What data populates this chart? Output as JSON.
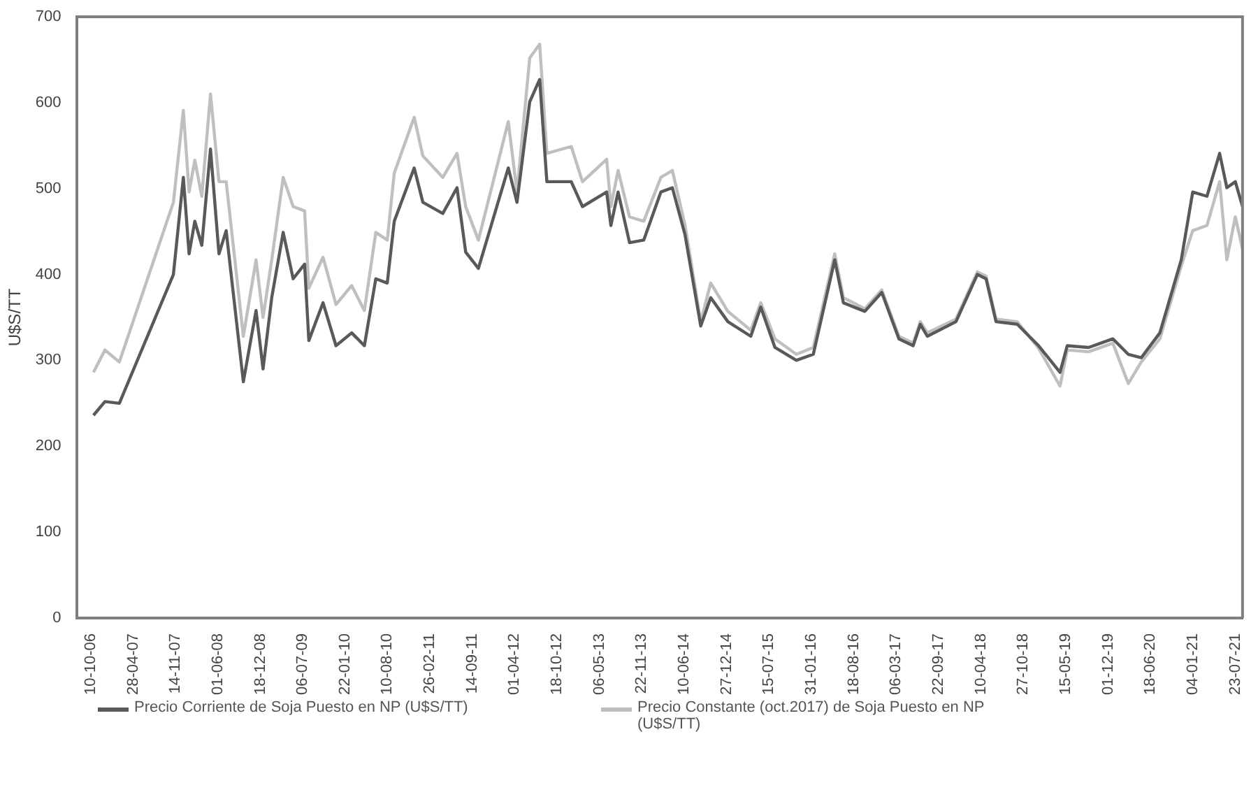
{
  "chart_data": {
    "type": "line",
    "ylabel": "U$S/TT",
    "x": [
      "2006-10-23",
      "2006-12-16",
      "2007-02-22",
      "2007-11-04",
      "2007-12-21",
      "2008-01-17",
      "2008-02-13",
      "2008-03-17",
      "2008-04-27",
      "2008-06-06",
      "2008-07-10",
      "2008-09-29",
      "2008-11-28",
      "2008-12-31",
      "2009-02-10",
      "2009-04-05",
      "2009-05-22",
      "2009-07-15",
      "2009-08-04",
      "2009-10-10",
      "2009-12-10",
      "2010-02-22",
      "2010-04-23",
      "2010-06-16",
      "2010-08-09",
      "2010-09-11",
      "2010-12-14",
      "2011-01-24",
      "2011-04-28",
      "2011-07-04",
      "2011-08-14",
      "2011-10-13",
      "2012-03-02",
      "2012-04-12",
      "2012-06-11",
      "2012-07-28",
      "2012-08-31",
      "2012-12-24",
      "2013-02-15",
      "2013-06-09",
      "2013-06-29",
      "2013-08-02",
      "2013-09-25",
      "2013-12-01",
      "2014-02-20",
      "2014-04-15",
      "2014-06-14",
      "2014-08-27",
      "2014-10-13",
      "2015-01-02",
      "2015-04-20",
      "2015-06-06",
      "2015-08-12",
      "2015-11-21",
      "2016-02-09",
      "2016-05-20",
      "2016-06-30",
      "2016-10-09",
      "2016-12-28",
      "2017-03-19",
      "2017-05-25",
      "2017-06-28",
      "2017-07-31",
      "2017-12-13",
      "2018-03-24",
      "2018-05-04",
      "2018-06-20",
      "2018-09-28",
      "2019-01-07",
      "2019-04-18",
      "2019-05-22",
      "2019-08-31",
      "2019-12-23",
      "2020-03-05",
      "2020-05-05",
      "2020-08-01",
      "2020-11-10",
      "2021-01-03",
      "2021-03-11",
      "2021-05-10",
      "2021-06-13",
      "2021-07-23",
      "2021-08-26"
    ],
    "series": [
      {
        "name": "Precio Corriente de Soja Puesto en NP (U$S/TT)",
        "color": "#595959",
        "values": [
          236,
          252,
          250,
          400,
          513,
          424,
          462,
          434,
          546,
          424,
          451,
          275,
          358,
          290,
          373,
          449,
          395,
          412,
          323,
          367,
          317,
          332,
          317,
          395,
          390,
          462,
          524,
          484,
          471,
          501,
          426,
          407,
          524,
          484,
          601,
          627,
          508,
          508,
          479,
          496,
          457,
          496,
          437,
          440,
          496,
          501,
          446,
          340,
          373,
          345,
          328,
          362,
          315,
          300,
          307,
          417,
          367,
          357,
          379,
          325,
          317,
          342,
          328,
          345,
          400,
          395,
          345,
          342,
          317,
          286,
          317,
          315,
          325,
          307,
          303,
          332,
          417,
          496,
          491,
          541,
          501,
          508,
          479
        ]
      },
      {
        "name": "Precio Constante (oct.2017) de Soja Puesto en NP (U$S/TT)",
        "color": "#bfbfbf",
        "values": [
          286,
          312,
          298,
          484,
          591,
          496,
          533,
          491,
          610,
          508,
          508,
          328,
          417,
          350,
          417,
          513,
          479,
          474,
          384,
          420,
          365,
          387,
          358,
          449,
          440,
          518,
          583,
          538,
          513,
          541,
          479,
          440,
          578,
          496,
          652,
          668,
          541,
          549,
          508,
          534,
          479,
          521,
          467,
          462,
          513,
          521,
          457,
          345,
          390,
          357,
          335,
          367,
          325,
          307,
          315,
          424,
          373,
          360,
          382,
          328,
          320,
          345,
          332,
          348,
          403,
          398,
          348,
          345,
          314,
          270,
          312,
          310,
          320,
          273,
          298,
          325,
          410,
          451,
          457,
          508,
          417,
          467,
          430
        ]
      }
    ],
    "xlim": [
      "2006-08-04",
      "2021-08-26"
    ],
    "xticks": [
      {
        "value": "2006-10-10",
        "label": "10-10-06"
      },
      {
        "value": "2007-04-28",
        "label": "28-04-07"
      },
      {
        "value": "2007-11-14",
        "label": "14-11-07"
      },
      {
        "value": "2008-06-01",
        "label": "01-06-08"
      },
      {
        "value": "2008-12-18",
        "label": "18-12-08"
      },
      {
        "value": "2009-07-06",
        "label": "06-07-09"
      },
      {
        "value": "2010-01-22",
        "label": "22-01-10"
      },
      {
        "value": "2010-08-10",
        "label": "10-08-10"
      },
      {
        "value": "2011-02-26",
        "label": "26-02-11"
      },
      {
        "value": "2011-09-14",
        "label": "14-09-11"
      },
      {
        "value": "2012-04-01",
        "label": "01-04-12"
      },
      {
        "value": "2012-10-18",
        "label": "18-10-12"
      },
      {
        "value": "2013-05-06",
        "label": "06-05-13"
      },
      {
        "value": "2013-11-22",
        "label": "22-11-13"
      },
      {
        "value": "2014-06-10",
        "label": "10-06-14"
      },
      {
        "value": "2014-12-27",
        "label": "27-12-14"
      },
      {
        "value": "2015-07-15",
        "label": "15-07-15"
      },
      {
        "value": "2016-01-31",
        "label": "31-01-16"
      },
      {
        "value": "2016-08-18",
        "label": "18-08-16"
      },
      {
        "value": "2017-03-06",
        "label": "06-03-17"
      },
      {
        "value": "2017-09-22",
        "label": "22-09-17"
      },
      {
        "value": "2018-04-10",
        "label": "10-04-18"
      },
      {
        "value": "2018-10-27",
        "label": "27-10-18"
      },
      {
        "value": "2019-05-15",
        "label": "15-05-19"
      },
      {
        "value": "2019-12-01",
        "label": "01-12-19"
      },
      {
        "value": "2020-06-18",
        "label": "18-06-20"
      },
      {
        "value": "2021-01-04",
        "label": "04-01-21"
      },
      {
        "value": "2021-07-23",
        "label": "23-07-21"
      }
    ],
    "ylim": [
      0,
      700
    ],
    "yticks": [
      0,
      100,
      200,
      300,
      400,
      500,
      600,
      700
    ],
    "grid": false,
    "legend": "bottom",
    "marker": "none",
    "line_style": "solid"
  }
}
